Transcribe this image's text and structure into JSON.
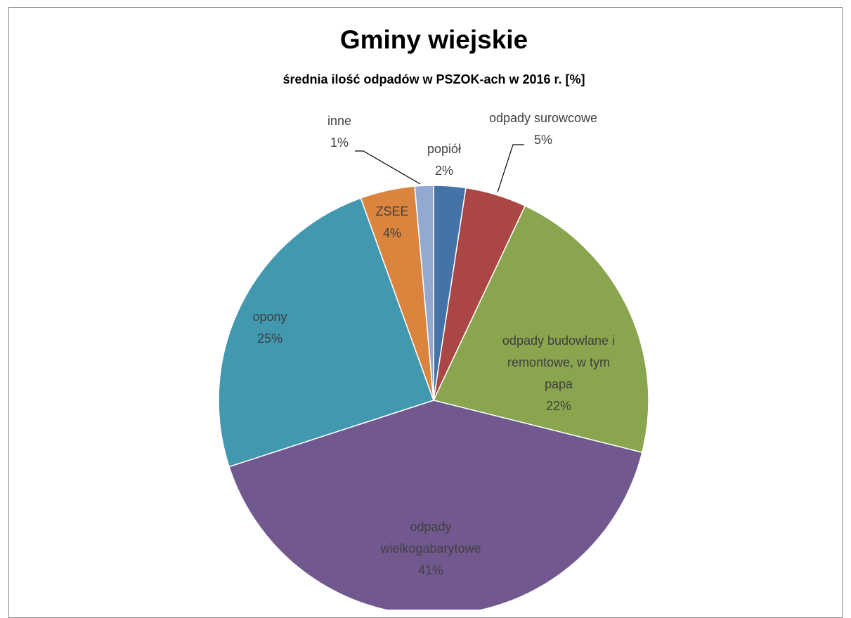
{
  "chart_data": {
    "type": "pie",
    "title": "Gminy wiejskie",
    "subtitle": "średnia ilość odpadów w PSZOK-ach w 2016 r. [%]",
    "slices": [
      {
        "label": "popiół",
        "value_label": "2%",
        "value": 2.4,
        "color": "#4572A7"
      },
      {
        "label": "odpady surowcowe",
        "value_label": "5%",
        "value": 4.6,
        "color": "#AA4643"
      },
      {
        "label": "odpady budowlane i remontowe, w tym papa",
        "value_label": "22%",
        "value": 21.9,
        "color": "#89A54E"
      },
      {
        "label": "odpady wielkogabarytowe",
        "value_label": "41%",
        "value": 41.1,
        "color": "#71588F"
      },
      {
        "label": "opony",
        "value_label": "25%",
        "value": 24.5,
        "color": "#4198AF"
      },
      {
        "label": "ZSEE",
        "value_label": "4%",
        "value": 4.1,
        "color": "#DB843D"
      },
      {
        "label": "inne",
        "value_label": "1%",
        "value": 1.4,
        "color": "#93A9CF"
      }
    ]
  }
}
